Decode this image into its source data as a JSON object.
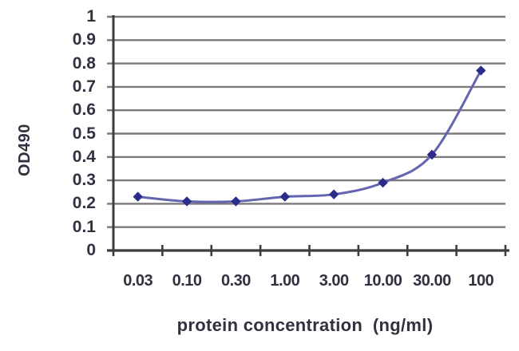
{
  "chart_data": {
    "type": "line",
    "title": "",
    "xlabel": "protein concentration  (ng/ml)",
    "ylabel": "OD490",
    "categories": [
      "0.03",
      "0.10",
      "0.30",
      "1.00",
      "3.00",
      "10.00",
      "30.00",
      "100"
    ],
    "series": [
      {
        "name": "OD490",
        "values": [
          0.23,
          0.21,
          0.21,
          0.23,
          0.24,
          0.29,
          0.41,
          0.77
        ]
      }
    ],
    "ylim": [
      0,
      1
    ],
    "y_ticks": [
      0,
      0.1,
      0.2,
      0.3,
      0.4,
      0.5,
      0.6,
      0.7,
      0.8,
      0.9,
      1
    ],
    "y_tick_labels": [
      "0",
      "0.1",
      "0.2",
      "0.3",
      "0.4",
      "0.5",
      "0.6",
      "0.7",
      "0.8",
      "0.9",
      "1"
    ],
    "grid": "horizontal",
    "legend_position": "none",
    "marker": "diamond",
    "colors": {
      "line": "#6464b0",
      "marker": "#2b2b8a",
      "gridline": "#7a7a7a",
      "axis": "#3d3d3d",
      "text": "#31313f",
      "background": "#ffffff"
    }
  }
}
